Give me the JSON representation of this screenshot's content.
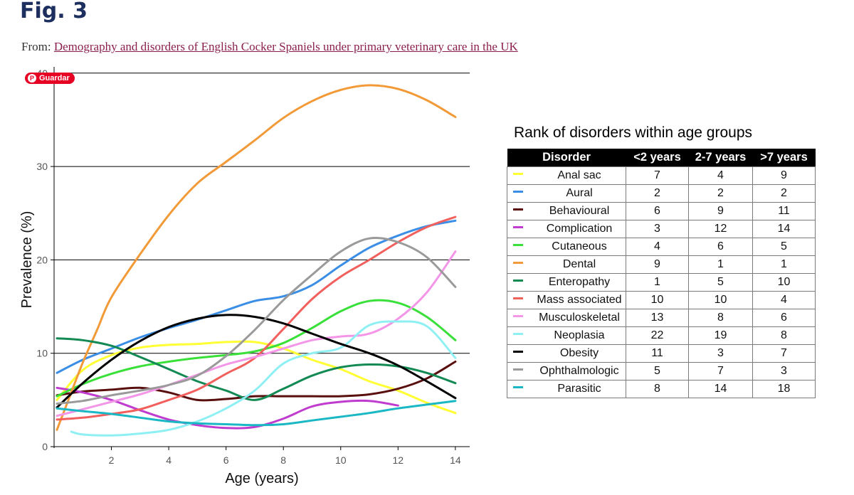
{
  "figure": {
    "title": "Fig. 3",
    "from_label": "From:",
    "from_link": "Demography and disorders of English Cocker Spaniels under primary veterinary care in the UK"
  },
  "pin_button": {
    "label": "Guardar",
    "icon": "pinterest-icon",
    "color": "#e60023"
  },
  "chart_data": {
    "type": "line",
    "xlabel": "Age (years)",
    "ylabel": "Prevalence (%)",
    "xlim": [
      0.0,
      14.5
    ],
    "ylim": [
      -1,
      40
    ],
    "xticks": [
      2,
      4,
      6,
      8,
      10,
      12,
      14
    ],
    "yticks": [
      0,
      10,
      20,
      30,
      40
    ],
    "grid": "horizontal",
    "series": [
      {
        "name": "Anal sac",
        "color": "#ffff33",
        "x": [
          0.1,
          1,
          2,
          3,
          4,
          5,
          6,
          7,
          8,
          9,
          10,
          11,
          12,
          13,
          14
        ],
        "y": [
          5,
          8.2,
          9.8,
          10.6,
          10.9,
          11,
          11.2,
          11.2,
          10.5,
          9.3,
          8.3,
          7,
          6,
          4.7,
          3.6
        ]
      },
      {
        "name": "Aural",
        "color": "#3b8ee6",
        "x": [
          0.1,
          1,
          2,
          3,
          4,
          5,
          6,
          7,
          8,
          9,
          10,
          11,
          12,
          13,
          14
        ],
        "y": [
          7.9,
          9.3,
          10.5,
          11.7,
          12.7,
          13.6,
          14.6,
          15.6,
          16.1,
          17.3,
          19.4,
          21.3,
          22.6,
          23.6,
          24.2
        ]
      },
      {
        "name": "Behavioural",
        "color": "#5a0f0f",
        "x": [
          0.1,
          1,
          2,
          3,
          4,
          5,
          6,
          7,
          8,
          9,
          10,
          11,
          12,
          13,
          14
        ],
        "y": [
          5.5,
          5.9,
          6.1,
          6.3,
          5.8,
          5,
          5.1,
          5.4,
          5.4,
          5.4,
          5.4,
          5.6,
          6.2,
          7.3,
          9.1
        ]
      },
      {
        "name": "Complication",
        "color": "#c03ccf",
        "x": [
          0.1,
          1,
          2,
          3,
          4,
          5,
          6,
          7,
          8,
          9,
          10,
          11,
          12
        ],
        "y": [
          6.3,
          5.8,
          5,
          3.9,
          2.9,
          2.3,
          2,
          2.1,
          3,
          4.3,
          4.8,
          4.9,
          4.4
        ]
      },
      {
        "name": "Cutaneous",
        "color": "#3ae03a",
        "x": [
          0.1,
          1,
          2,
          3,
          4,
          5,
          6,
          7,
          8,
          9,
          10,
          11,
          12,
          13,
          14
        ],
        "y": [
          5.4,
          6.7,
          7.8,
          8.6,
          9.1,
          9.5,
          9.8,
          10.2,
          11.1,
          12.7,
          14.5,
          15.6,
          15.4,
          13.9,
          11.4
        ]
      },
      {
        "name": "Dental",
        "color": "#f39a38",
        "x": [
          0.1,
          0.5,
          1,
          1.5,
          2,
          3,
          4,
          5,
          6,
          7,
          8,
          9,
          10,
          11,
          12,
          13,
          14
        ],
        "y": [
          1.8,
          5,
          9,
          12.5,
          16,
          20.6,
          24.8,
          28.2,
          30.5,
          32.8,
          35.2,
          37,
          38.2,
          38.7,
          38.3,
          37.1,
          35.3
        ]
      },
      {
        "name": "Enteropathy",
        "color": "#138a53",
        "x": [
          0.1,
          1,
          2,
          3,
          4,
          5,
          6,
          7,
          8,
          9,
          10,
          11,
          12,
          13,
          14
        ],
        "y": [
          11.6,
          11.4,
          10.8,
          9.6,
          8.3,
          7,
          6,
          5,
          6.2,
          7.6,
          8.5,
          8.8,
          8.6,
          7.9,
          6.8
        ]
      },
      {
        "name": "Mass associated",
        "color": "#f2605e",
        "x": [
          0.1,
          1,
          2,
          3,
          4,
          5,
          6,
          7,
          8,
          9,
          10,
          11,
          12,
          13,
          14
        ],
        "y": [
          2.9,
          3.1,
          3.5,
          4,
          5,
          6.1,
          7.8,
          9.5,
          12.6,
          15.8,
          18.2,
          20,
          21.9,
          23.5,
          24.6
        ]
      },
      {
        "name": "Musculoskeletal",
        "color": "#f496e8",
        "x": [
          0.1,
          1,
          2,
          3,
          4,
          5,
          6,
          7,
          8,
          9,
          10,
          11,
          12,
          13,
          14
        ],
        "y": [
          3.3,
          4,
          4.8,
          5.6,
          6.6,
          7.7,
          8.8,
          9.6,
          10.5,
          11.4,
          11.8,
          12.1,
          13.7,
          16.5,
          20.9
        ]
      },
      {
        "name": "Neoplasia",
        "color": "#8ef0f3",
        "x": [
          0.6,
          1,
          2,
          3,
          4,
          5,
          6,
          7,
          8,
          9,
          10,
          11,
          12,
          13,
          14
        ],
        "y": [
          1.6,
          1.3,
          1.2,
          1.4,
          1.8,
          2.7,
          4.1,
          6,
          8.9,
          10,
          10.6,
          13,
          13.4,
          12.9,
          9.5
        ]
      },
      {
        "name": "Obesity",
        "color": "#000000",
        "x": [
          0.1,
          1,
          2,
          3,
          4,
          5,
          6,
          7,
          8,
          9,
          10,
          11,
          12,
          13,
          14
        ],
        "y": [
          4.2,
          6.8,
          9.3,
          11.3,
          12.8,
          13.7,
          14.1,
          13.9,
          13.2,
          12.1,
          11,
          10,
          8.7,
          7,
          5.2
        ]
      },
      {
        "name": "Ophthalmologic",
        "color": "#9a9a9a",
        "x": [
          0.1,
          1,
          2,
          3,
          4,
          5,
          6,
          7,
          8,
          9,
          10,
          11,
          12,
          13,
          14
        ],
        "y": [
          4.6,
          4.9,
          5.5,
          6,
          6.6,
          7.6,
          9.7,
          12.5,
          15.7,
          18.4,
          20.9,
          22.3,
          21.9,
          20.3,
          17.1
        ]
      },
      {
        "name": "Parasitic",
        "color": "#1ab8c4",
        "x": [
          0.1,
          1,
          2,
          3,
          4,
          5,
          6,
          7,
          8,
          9,
          10,
          11,
          12,
          13,
          14
        ],
        "y": [
          4.1,
          3.8,
          3.5,
          3.1,
          2.7,
          2.5,
          2.4,
          2.3,
          2.4,
          2.8,
          3.2,
          3.6,
          4.1,
          4.5,
          4.9
        ]
      }
    ]
  },
  "rank_table": {
    "title": "Rank of disorders within age groups",
    "headers": [
      "Disorder",
      "<2 years",
      "2-7 years",
      ">7 years"
    ],
    "rows": [
      {
        "name": "Anal sac",
        "color": "#ffff33",
        "r1": "7",
        "r2": "4",
        "r3": "9"
      },
      {
        "name": "Aural",
        "color": "#3b8ee6",
        "r1": "2",
        "r2": "2",
        "r3": "2"
      },
      {
        "name": "Behavioural",
        "color": "#5a0f0f",
        "r1": "6",
        "r2": "9",
        "r3": "11"
      },
      {
        "name": "Complication",
        "color": "#c03ccf",
        "r1": "3",
        "r2": "12",
        "r3": "14"
      },
      {
        "name": "Cutaneous",
        "color": "#3ae03a",
        "r1": "4",
        "r2": "6",
        "r3": "5"
      },
      {
        "name": "Dental",
        "color": "#f39a38",
        "r1": "9",
        "r2": "1",
        "r3": "1"
      },
      {
        "name": "Enteropathy",
        "color": "#138a53",
        "r1": "1",
        "r2": "5",
        "r3": "10"
      },
      {
        "name": "Mass associated",
        "color": "#f2605e",
        "r1": "10",
        "r2": "10",
        "r3": "4"
      },
      {
        "name": "Musculoskeletal",
        "color": "#f496e8",
        "r1": "13",
        "r2": "8",
        "r3": "6"
      },
      {
        "name": "Neoplasia",
        "color": "#8ef0f3",
        "r1": "22",
        "r2": "19",
        "r3": "8"
      },
      {
        "name": "Obesity",
        "color": "#000000",
        "r1": "11",
        "r2": "3",
        "r3": "7"
      },
      {
        "name": "Ophthalmologic",
        "color": "#9a9a9a",
        "r1": "5",
        "r2": "7",
        "r3": "3"
      },
      {
        "name": "Parasitic",
        "color": "#1ab8c4",
        "r1": "8",
        "r2": "14",
        "r3": "18"
      }
    ]
  }
}
